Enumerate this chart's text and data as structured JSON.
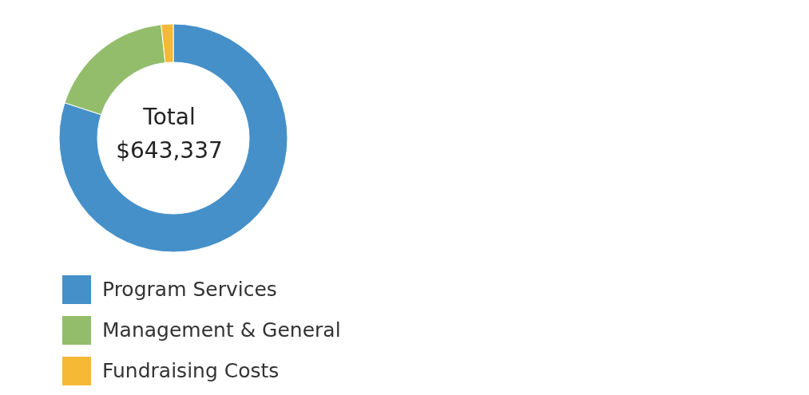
{
  "chart_data": {
    "type": "donut",
    "categories": [
      "Program Services",
      "Management & General",
      "Fundraising Costs"
    ],
    "values": [
      80,
      18.3,
      1.7
    ],
    "colors": [
      "#4590c9",
      "#93bd6b",
      "#f5b935"
    ],
    "annotations": [
      "Total",
      "$643,337"
    ],
    "legend": "bottom"
  }
}
